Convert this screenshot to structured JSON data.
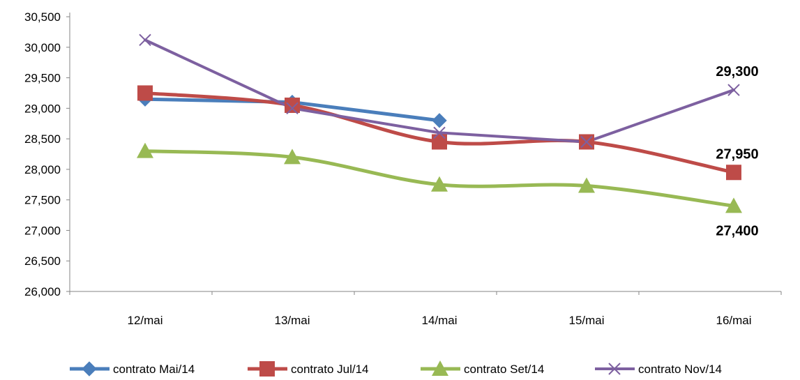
{
  "chart_data": {
    "type": "line",
    "categories": [
      "12/mai",
      "13/mai",
      "14/mai",
      "15/mai",
      "16/mai"
    ],
    "ylim": [
      26000,
      30500
    ],
    "ytick_step": 500,
    "yticks": [
      "26,000",
      "26,500",
      "27,000",
      "27,500",
      "28,000",
      "28,500",
      "29,000",
      "29,500",
      "30,000",
      "30,500"
    ],
    "grid": false,
    "legend_position": "bottom",
    "series": [
      {
        "name": "contrato Mai/14",
        "color": "#4a7ebb",
        "marker": "diamond",
        "values": [
          29150,
          29100,
          28800,
          null,
          null
        ]
      },
      {
        "name": "contrato Jul/14",
        "color": "#be4b48",
        "marker": "square",
        "values": [
          29250,
          29050,
          28450,
          28450,
          27950
        ]
      },
      {
        "name": "contrato Set/14",
        "color": "#98b954",
        "marker": "triangle",
        "values": [
          28300,
          28200,
          27750,
          27730,
          27400
        ]
      },
      {
        "name": "contrato Nov/14",
        "color": "#7d60a0",
        "marker": "x",
        "values": [
          30120,
          29000,
          28600,
          28450,
          29300
        ]
      }
    ],
    "annotations": [
      {
        "series": 3,
        "index": 4,
        "text": "29,300",
        "position": "above"
      },
      {
        "series": 1,
        "index": 4,
        "text": "27,950",
        "position": "above"
      },
      {
        "series": 2,
        "index": 4,
        "text": "27,400",
        "position": "below"
      }
    ]
  }
}
